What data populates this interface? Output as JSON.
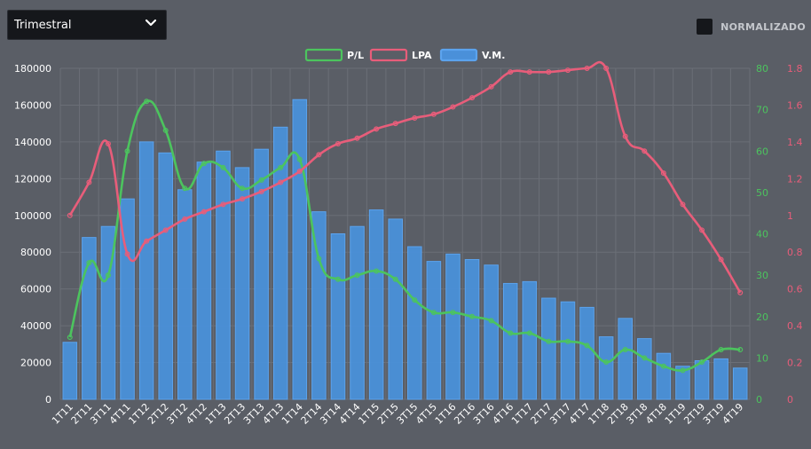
{
  "period_select": {
    "value": "Trimestral"
  },
  "normalize": {
    "label": "NORMALIZADO",
    "checked": false
  },
  "colors": {
    "bar": "#4a90d9",
    "bar_stroke": "#5ba3ee",
    "pl": "#4cc45e",
    "lpa": "#e85d7a",
    "grid": "#6b6f77"
  },
  "chart_data": {
    "type": "bar",
    "categories": [
      "1T11",
      "2T11",
      "3T11",
      "4T11",
      "1T12",
      "2T12",
      "3T12",
      "4T12",
      "1T13",
      "2T13",
      "3T13",
      "4T13",
      "1T14",
      "2T14",
      "3T14",
      "4T14",
      "1T15",
      "2T15",
      "3T15",
      "4T15",
      "1T16",
      "2T16",
      "3T16",
      "4T16",
      "1T17",
      "2T17",
      "3T17",
      "4T17",
      "1T18",
      "2T18",
      "3T18",
      "4T18",
      "1T19",
      "2T19",
      "3T19",
      "4T19"
    ],
    "series": [
      {
        "name": "V.M.",
        "type": "bar",
        "axis": "left",
        "values": [
          31000,
          88000,
          94000,
          109000,
          140000,
          134000,
          114000,
          129000,
          135000,
          126000,
          136000,
          148000,
          163000,
          102000,
          90000,
          94000,
          103000,
          98000,
          83000,
          75000,
          79000,
          76000,
          73000,
          63000,
          64000,
          55000,
          53000,
          50000,
          34000,
          44000,
          33000,
          25000,
          18000,
          21000,
          22000,
          17000
        ]
      },
      {
        "name": "P/L",
        "type": "line",
        "axis": "right1",
        "values": [
          15,
          33,
          30,
          60,
          72,
          65,
          51,
          57,
          56,
          51,
          53,
          56,
          58,
          34,
          29,
          30,
          31,
          29,
          24,
          21,
          21,
          20,
          19,
          16,
          16,
          14,
          14,
          13,
          9,
          12,
          10,
          8,
          7,
          9,
          12,
          12
        ]
      },
      {
        "name": "LPA",
        "type": "line",
        "axis": "right2",
        "values": [
          1.0,
          1.18,
          1.39,
          0.79,
          0.86,
          0.92,
          0.98,
          1.02,
          1.06,
          1.09,
          1.13,
          1.18,
          1.24,
          1.33,
          1.39,
          1.42,
          1.47,
          1.5,
          1.53,
          1.55,
          1.59,
          1.64,
          1.7,
          1.78,
          1.78,
          1.78,
          1.79,
          1.8,
          1.8,
          1.43,
          1.35,
          1.23,
          1.06,
          0.92,
          0.76,
          0.58
        ]
      }
    ],
    "y_left": {
      "min": 0,
      "max": 180000,
      "step": 20000
    },
    "y_right1": {
      "min": 0,
      "max": 80,
      "step": 10
    },
    "y_right2": {
      "min": 0,
      "max": 1.8,
      "step": 0.2
    },
    "grid": true,
    "legend_position": "top-center"
  }
}
